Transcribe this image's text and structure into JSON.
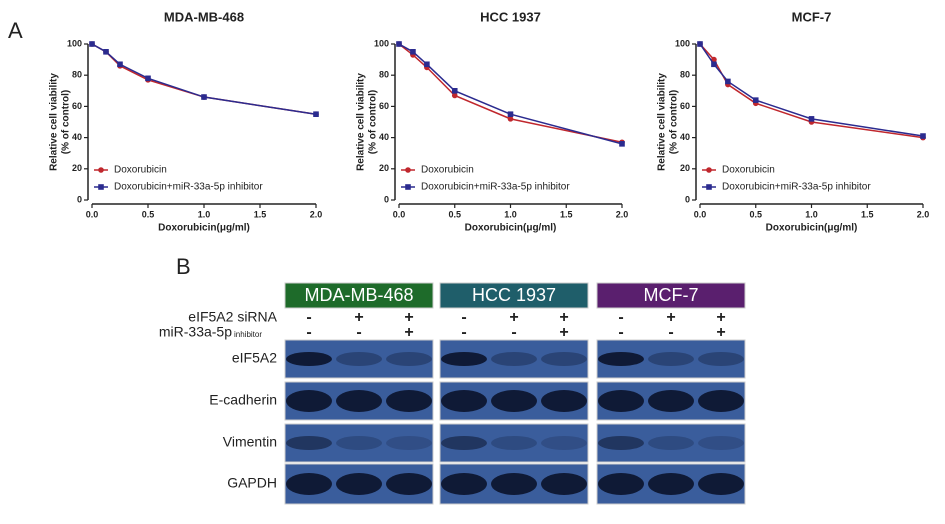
{
  "panel_labels": [
    "A",
    "B"
  ],
  "chart_data": [
    {
      "type": "line",
      "title": "MDA-MB-468",
      "xlabel": "Doxorubicin(μg/ml)",
      "ylabel": [
        "Relative cell viability",
        "(% of control)"
      ],
      "x": [
        0,
        0.125,
        0.25,
        0.5,
        1,
        2
      ],
      "series": [
        {
          "name": "Doxorubicin",
          "color": "#c0272d",
          "values": [
            100,
            95,
            86,
            77,
            66,
            55
          ]
        },
        {
          "name": "Doxorubicin+miR-33a-5p inhibitor",
          "color": "#2b2b8f",
          "values": [
            100,
            95,
            87,
            78,
            66,
            55
          ]
        }
      ],
      "xlim": [
        0,
        2
      ],
      "ylim": [
        0,
        100
      ],
      "xticks": [
        {
          "value": 0,
          "label": "0.0"
        },
        {
          "value": 0.5,
          "label": "0.5"
        },
        {
          "value": 1,
          "label": "1.0"
        },
        {
          "value": 1.5,
          "label": "1.5"
        },
        {
          "value": 2,
          "label": "2.0"
        }
      ],
      "yticks": [
        0,
        20,
        40,
        60,
        80,
        100
      ],
      "legend": "lower left"
    },
    {
      "type": "line",
      "title": "HCC 1937",
      "xlabel": "Doxorubicin(μg/ml)",
      "ylabel": [
        "Relative cell viability",
        "(% of control)"
      ],
      "x": [
        0,
        0.125,
        0.25,
        0.5,
        1,
        2
      ],
      "series": [
        {
          "name": "Doxorubicin",
          "color": "#c0272d",
          "values": [
            100,
            93,
            85,
            67,
            52,
            37
          ]
        },
        {
          "name": "Doxorubicin+miR-33a-5p inhibitor",
          "color": "#2b2b8f",
          "values": [
            100,
            95,
            87,
            70,
            55,
            36
          ]
        }
      ],
      "xlim": [
        0,
        2
      ],
      "ylim": [
        0,
        100
      ],
      "xticks": [
        {
          "value": 0,
          "label": "0.0"
        },
        {
          "value": 0.5,
          "label": "0.5"
        },
        {
          "value": 1,
          "label": "1.0"
        },
        {
          "value": 1.5,
          "label": "1.5"
        },
        {
          "value": 2,
          "label": "2.0"
        }
      ],
      "yticks": [
        0,
        20,
        40,
        60,
        80,
        100
      ],
      "legend": "lower left"
    },
    {
      "type": "line",
      "title": "MCF-7",
      "xlabel": "Doxorubicin(μg/ml)",
      "ylabel": [
        "Relative cell viability",
        "(% of control)"
      ],
      "x": [
        0,
        0.125,
        0.25,
        0.5,
        1,
        2
      ],
      "series": [
        {
          "name": "Doxorubicin",
          "color": "#c0272d",
          "values": [
            100,
            90,
            74,
            62,
            50,
            40
          ]
        },
        {
          "name": "Doxorubicin+miR-33a-5p inhibitor",
          "color": "#2b2b8f",
          "values": [
            100,
            87,
            76,
            64,
            52,
            41
          ]
        }
      ],
      "xlim": [
        0,
        2
      ],
      "ylim": [
        0,
        100
      ],
      "xticks": [
        {
          "value": 0,
          "label": "0.0"
        },
        {
          "value": 0.5,
          "label": "0.5"
        },
        {
          "value": 1,
          "label": "1.0"
        },
        {
          "value": 1.5,
          "label": "1.5"
        },
        {
          "value": 2,
          "label": "2.0"
        }
      ],
      "yticks": [
        0,
        20,
        40,
        60,
        80,
        100
      ],
      "legend": "lower left"
    }
  ],
  "blot": {
    "cell_lines": [
      {
        "name": "MDA-MB-468",
        "color": "#1e6b2a"
      },
      {
        "name": "HCC 1937",
        "color": "#1f5e6a"
      },
      {
        "name": "MCF-7",
        "color": "#5a1f6e"
      }
    ],
    "treatments": [
      {
        "label": "eIF5A2 siRNA",
        "signs": [
          "-",
          "+",
          "+"
        ]
      },
      {
        "label": "miR-33a-5p",
        "sublabel": "inhibitor",
        "signs": [
          "-",
          "-",
          "+"
        ]
      }
    ],
    "proteins": [
      "eIF5A2",
      "E-cadherin",
      "Vimentin",
      "GAPDH"
    ]
  }
}
